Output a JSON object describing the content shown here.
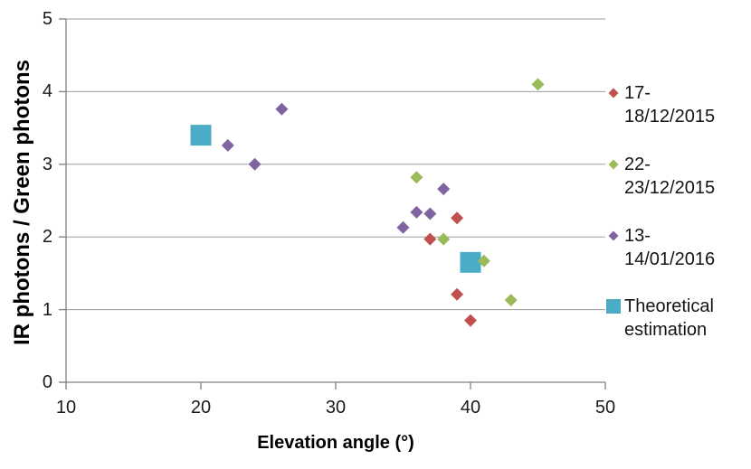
{
  "chart_data": {
    "type": "scatter",
    "title": "",
    "xlabel": "Elevation angle (°)",
    "ylabel": "IR photons / Green photons",
    "xlim": [
      10,
      50
    ],
    "ylim": [
      0,
      5
    ],
    "xticks": [
      10,
      20,
      30,
      40,
      50
    ],
    "yticks": [
      0,
      1,
      2,
      3,
      4,
      5
    ],
    "grid": "horizontal-only",
    "legend_position": "right",
    "series": [
      {
        "name": "17-18/12/2015",
        "marker": "diamond",
        "color": "#C0504D",
        "points": [
          [
            37,
            1.97
          ],
          [
            39,
            2.26
          ],
          [
            39,
            1.21
          ],
          [
            40,
            0.85
          ]
        ]
      },
      {
        "name": "22-23/12/2015",
        "marker": "diamond",
        "color": "#9BBB59",
        "points": [
          [
            36,
            2.82
          ],
          [
            38,
            1.97
          ],
          [
            41,
            1.67
          ],
          [
            43,
            1.13
          ],
          [
            45,
            4.1
          ]
        ]
      },
      {
        "name": "13-14/01/2016",
        "marker": "diamond",
        "color": "#8064A2",
        "points": [
          [
            22,
            3.26
          ],
          [
            24,
            3.0
          ],
          [
            26,
            3.76
          ],
          [
            35,
            2.13
          ],
          [
            36,
            2.34
          ],
          [
            37,
            2.32
          ],
          [
            38,
            2.66
          ]
        ]
      },
      {
        "name": "Theoretical estimation",
        "marker": "square",
        "color": "#4BACC6",
        "points": [
          [
            20,
            3.4
          ],
          [
            40,
            1.65
          ]
        ]
      }
    ],
    "style": {
      "gridline_color": "#9D9D9D",
      "axis_color": "#808080",
      "tick_label_color": "#1a1a1a",
      "background": "#ffffff"
    }
  }
}
